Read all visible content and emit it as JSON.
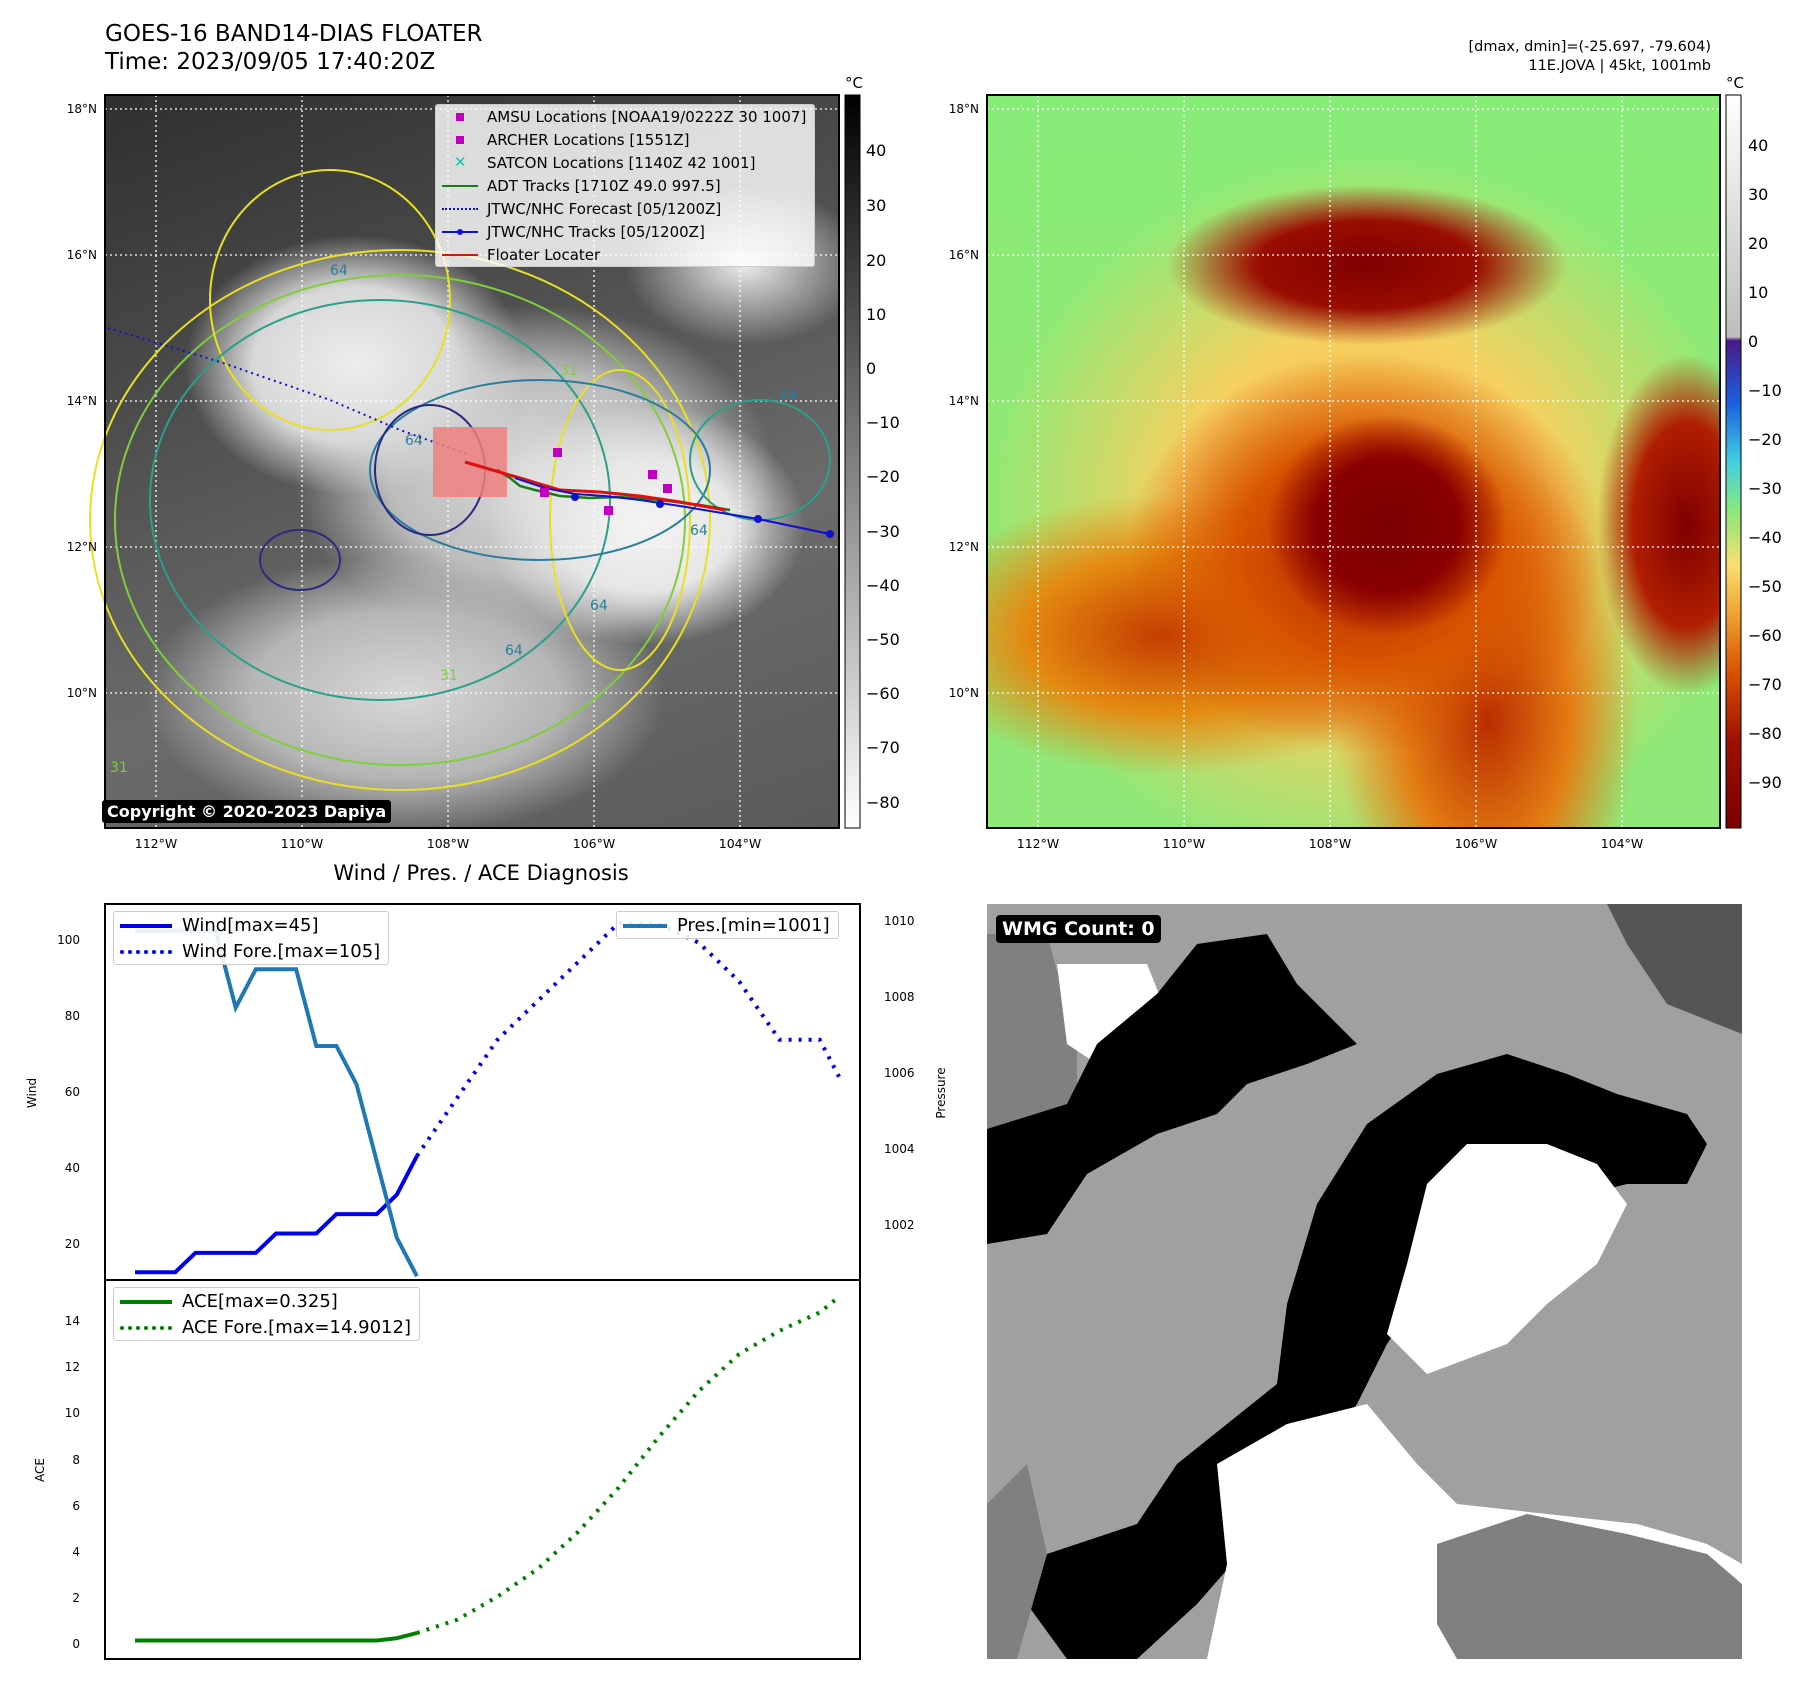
{
  "header": {
    "title_line1": "GOES-16 BAND14-DIAS FLOATER",
    "title_line2": "Time: 2023/09/05 17:40:20Z",
    "dmax_dmin": "[dmax, dmin]=(-25.697, -79.604)",
    "storm_info": "11E.JOVA | 45kt, 1001mb"
  },
  "map_panels": {
    "lon_ticks": [
      "112°W",
      "110°W",
      "108°W",
      "106°W",
      "104°W"
    ],
    "lat_ticks": [
      "18°N",
      "16°N",
      "14°N",
      "12°N",
      "10°N"
    ],
    "colorbar_unit": "°C",
    "gray_colorbar_ticks": [
      "40",
      "30",
      "20",
      "10",
      "0",
      "−10",
      "−20",
      "−30",
      "−40",
      "−50",
      "−60",
      "−70",
      "−80"
    ],
    "color_colorbar_ticks": [
      "40",
      "30",
      "20",
      "10",
      "0",
      "−10",
      "−20",
      "−30",
      "−40",
      "−50",
      "−60",
      "−70",
      "−80",
      "−90"
    ],
    "copyright": "Copyright © 2020-2023 Dapiya",
    "contour_labels": [
      "64",
      "64",
      "64",
      "64",
      "64",
      "64",
      "31",
      "31",
      "31"
    ]
  },
  "legend_map": [
    {
      "label": "AMSU Locations [NOAA19/0222Z 30 1007]",
      "color": "#c000c0",
      "marker": "square"
    },
    {
      "label": "ARCHER Locations [1551Z]",
      "color": "#c000c0",
      "marker": "square"
    },
    {
      "label": "SATCON Locations [1140Z 42 1001]",
      "color": "#11c7b2",
      "marker": "x"
    },
    {
      "label": "ADT Tracks [1710Z 49.0 997.5]",
      "color": "#1a7a1a",
      "marker": "line"
    },
    {
      "label": "JTWC/NHC Forecast [05/1200Z]",
      "color": "#1010d0",
      "marker": "dotted"
    },
    {
      "label": "JTWC/NHC Tracks [05/1200Z]",
      "color": "#1010d0",
      "marker": "line-dot"
    },
    {
      "label": "Floater Locater",
      "color": "#e01010",
      "marker": "line"
    }
  ],
  "diagnosis": {
    "title": "Wind / Pres. / ACE Diagnosis",
    "wind_axis_label": "Wind",
    "pressure_axis_label": "Pressure",
    "ace_axis_label": "ACE",
    "legend_wind": "Wind[max=45]",
    "legend_wind_fore": "Wind Fore.[max=105]",
    "legend_pres": "Pres.[min=1001]",
    "legend_ace": "ACE[max=0.325]",
    "legend_ace_fore": "ACE Fore.[max=14.9012]",
    "wind_ticks": [
      "100",
      "80",
      "60",
      "40",
      "20"
    ],
    "pressure_ticks": [
      "1010",
      "1008",
      "1006",
      "1004",
      "1002"
    ],
    "ace_ticks": [
      "14",
      "12",
      "10",
      "8",
      "6",
      "4",
      "2",
      "0"
    ]
  },
  "wmg": {
    "label": "WMG Count: 0"
  },
  "chart_data": [
    {
      "type": "line",
      "title": "Wind / Pres. / ACE Diagnosis",
      "ylabel": "Wind",
      "ylim": [
        13,
        110
      ],
      "x": [
        0,
        1,
        2,
        3,
        4,
        5,
        6,
        7,
        8,
        9,
        10,
        11,
        12,
        13,
        14,
        15,
        16,
        17,
        18,
        19,
        20,
        21,
        22,
        23,
        24,
        25,
        26,
        27,
        28,
        29,
        30,
        31,
        32,
        33,
        34,
        35
      ],
      "series": [
        {
          "name": "Wind[max=45]",
          "color": "#0000ee",
          "style": "solid",
          "x": [
            0,
            1,
            2,
            3,
            4,
            5,
            6,
            7,
            8,
            9,
            10,
            11,
            12,
            13,
            14
          ],
          "values": [
            15,
            15,
            15,
            20,
            20,
            20,
            20,
            25,
            25,
            25,
            30,
            30,
            30,
            35,
            45
          ]
        },
        {
          "name": "Wind Fore.[max=105]",
          "color": "#0000ee",
          "style": "dotted",
          "x": [
            14,
            16,
            18,
            20,
            22,
            24,
            26,
            28,
            30,
            32,
            34,
            35
          ],
          "values": [
            45,
            60,
            75,
            85,
            95,
            105,
            105,
            100,
            90,
            75,
            75,
            65
          ]
        }
      ]
    },
    {
      "type": "line",
      "ylabel": "Pressure",
      "ylim": [
        1000.9,
        1010.7
      ],
      "series": [
        {
          "name": "Pres.[min=1001]",
          "color": "#1f77b4",
          "style": "solid",
          "x": [
            0,
            1,
            2,
            3,
            4,
            5,
            6,
            7,
            8,
            9,
            10,
            11,
            12,
            13,
            14
          ],
          "values": [
            1010,
            1010,
            1010,
            1010,
            1010,
            1008,
            1009,
            1009,
            1009,
            1007,
            1007,
            1006,
            1004,
            1002,
            1001
          ]
        }
      ]
    },
    {
      "type": "line",
      "ylabel": "ACE",
      "ylim": [
        -0.8,
        15.6
      ],
      "series": [
        {
          "name": "ACE[max=0.325]",
          "color": "#008000",
          "style": "solid",
          "x": [
            0,
            2,
            4,
            6,
            8,
            10,
            12,
            13,
            14
          ],
          "values": [
            0,
            0,
            0,
            0,
            0,
            0,
            0,
            0.1,
            0.325
          ]
        },
        {
          "name": "ACE Fore.[max=14.9012]",
          "color": "#008000",
          "style": "dotted",
          "x": [
            14,
            16,
            18,
            20,
            22,
            24,
            26,
            28,
            30,
            32,
            34,
            35
          ],
          "values": [
            0.325,
            0.9,
            1.9,
            3.1,
            4.7,
            6.6,
            8.8,
            10.8,
            12.4,
            13.4,
            14.2,
            14.9012
          ]
        }
      ]
    }
  ]
}
